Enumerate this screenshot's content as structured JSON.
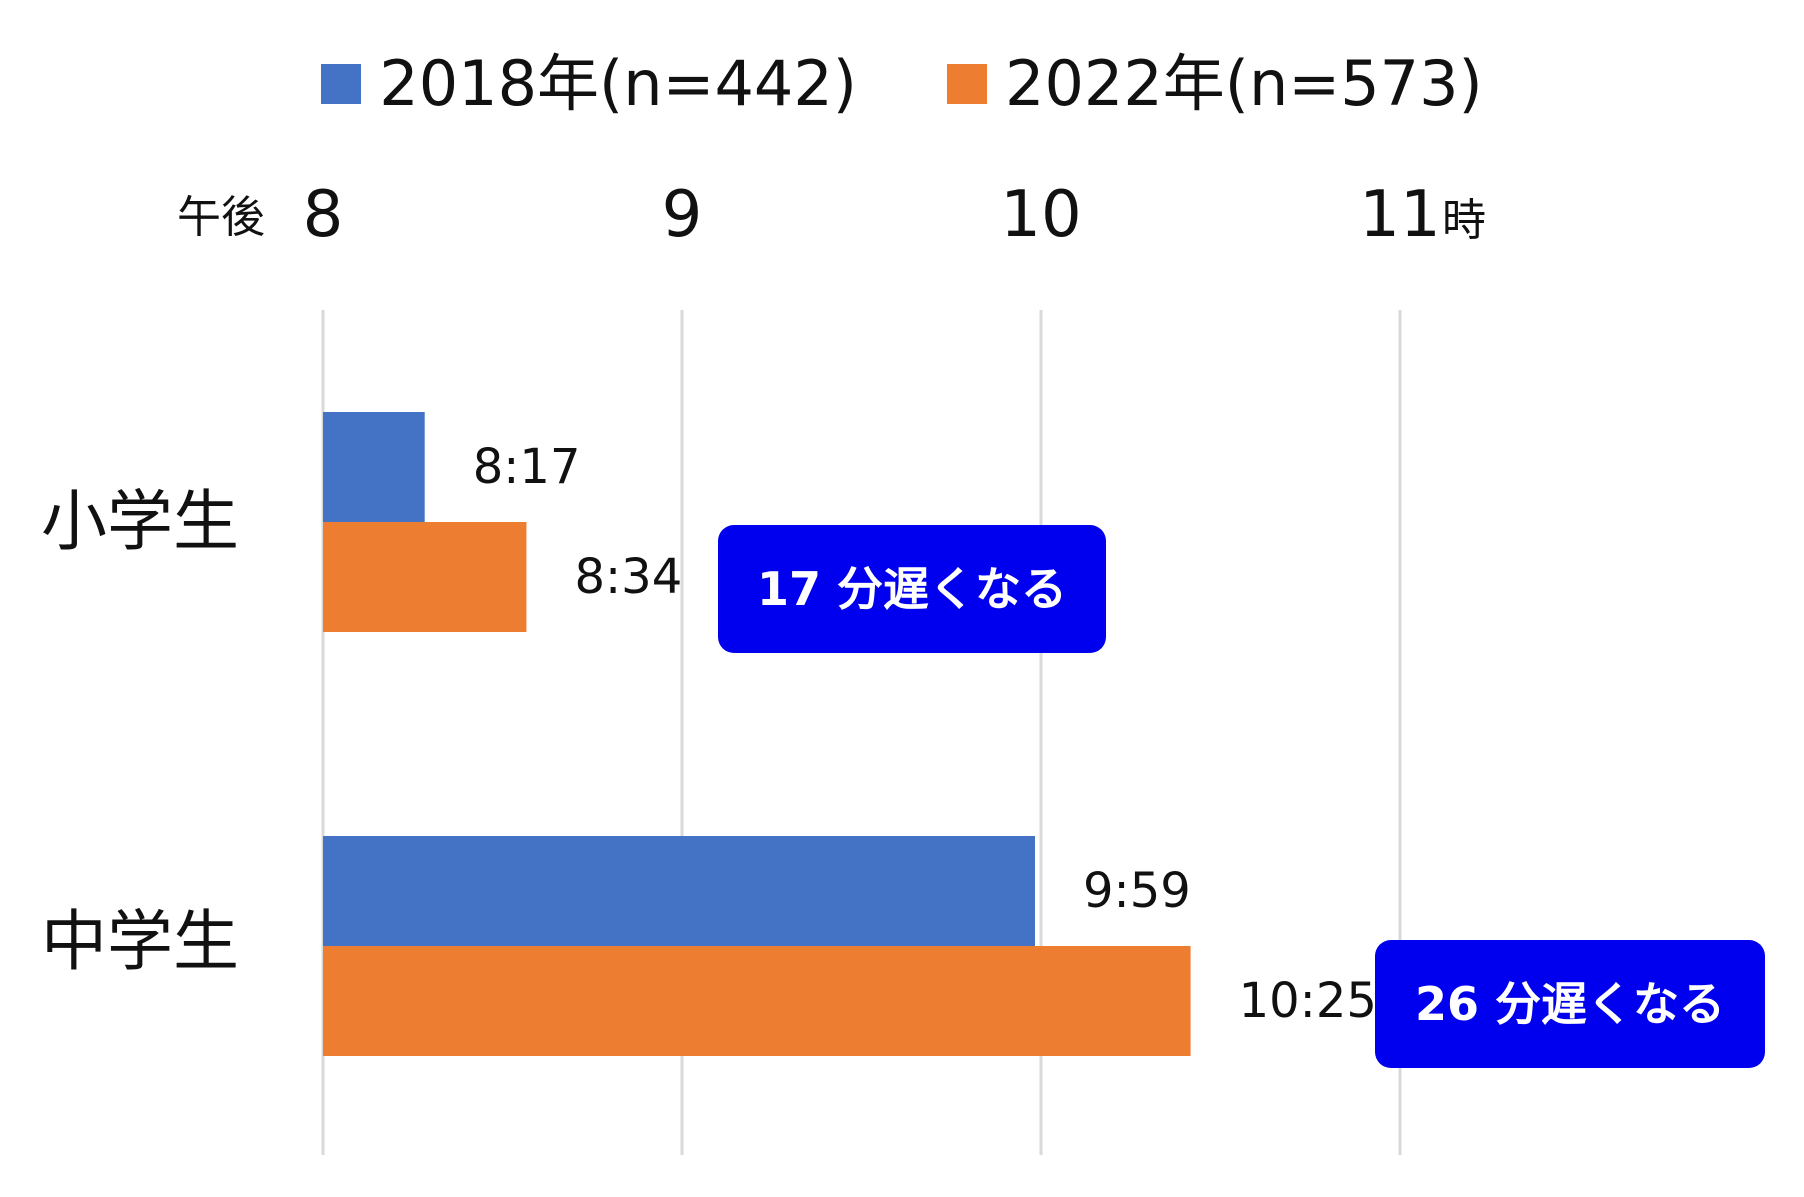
{
  "chart_data": {
    "type": "bar",
    "orientation": "horizontal",
    "categories": [
      "小学生",
      "中学生"
    ],
    "series": [
      {
        "name": "2018年(n=442)",
        "color": "#4472C4",
        "values": [
          8.2833,
          9.9833
        ],
        "labels": [
          "8:17",
          "9:59"
        ]
      },
      {
        "name": "2022年(n=573)",
        "color": "#ED7D31",
        "values": [
          8.5667,
          10.4167
        ],
        "labels": [
          "8:34",
          "10:25"
        ]
      }
    ],
    "xlim": [
      8,
      11
    ],
    "ticks": [
      {
        "value": 8,
        "label": "8"
      },
      {
        "value": 9,
        "label": "9"
      },
      {
        "value": 10,
        "label": "10"
      },
      {
        "value": 11,
        "label": "11"
      }
    ],
    "axis_prefix": "午後",
    "axis_suffix": "時",
    "legend_position": "top",
    "grid": true,
    "annotations": [
      {
        "category": "小学生",
        "text": "17 分遅くなる",
        "color": "#0000EE"
      },
      {
        "category": "中学生",
        "text": "26 分遅くなる",
        "color": "#0000EE"
      }
    ]
  }
}
